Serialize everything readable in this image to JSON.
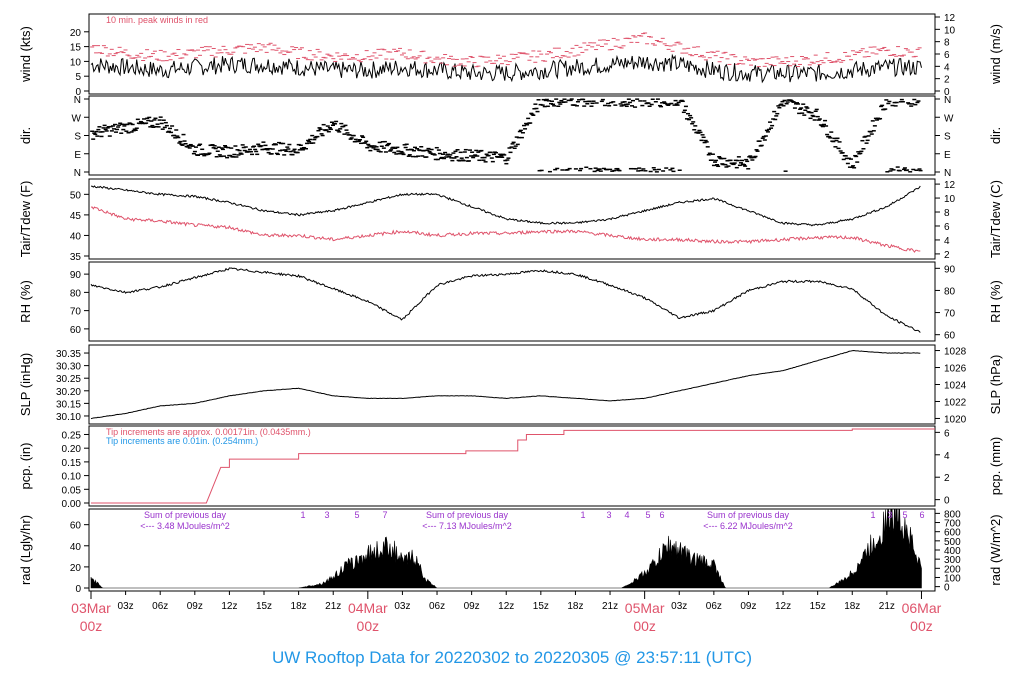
{
  "chart_data": [
    {
      "type": "line",
      "id": "wind",
      "ylabel_left": "wind (kts)",
      "ylabel_right": "wind (m/s)",
      "ylim": [
        0,
        25
      ],
      "yticks_left": [
        "0",
        "5",
        "10",
        "15",
        "20"
      ],
      "yticks_right": [
        "0",
        "2",
        "4",
        "6",
        "8",
        "10",
        "12"
      ],
      "annotation": "10 min. peak winds in red",
      "x_hours": [
        0,
        6,
        12,
        18,
        24,
        30,
        36,
        42,
        48,
        54,
        60,
        66,
        72,
        78,
        84,
        90,
        96,
        102,
        108,
        114,
        120,
        126,
        132,
        138,
        144
      ],
      "series": [
        {
          "role": "mean",
          "values": [
            9,
            8,
            7,
            8,
            9,
            9,
            8,
            7,
            7,
            8,
            7,
            6,
            6,
            7,
            8,
            9,
            10,
            9,
            7,
            6,
            6,
            6,
            7,
            8,
            8
          ]
        },
        {
          "role": "peak",
          "values": [
            14,
            12,
            11,
            12,
            13,
            14,
            12,
            11,
            11,
            12,
            10,
            9,
            10,
            11,
            13,
            15,
            17,
            14,
            11,
            9,
            9,
            10,
            11,
            13,
            12
          ]
        }
      ]
    },
    {
      "type": "scatter",
      "id": "dir",
      "ylabel_left": "dir.",
      "ylabel_right": "dir.",
      "ylim": [
        0,
        360
      ],
      "yticks_left": [
        "N",
        "E",
        "S",
        "W",
        "N"
      ],
      "yticks_right": [
        "N",
        "E",
        "S",
        "W",
        "N"
      ],
      "x_hours": [
        0,
        6,
        12,
        18,
        24,
        30,
        36,
        42,
        48,
        54,
        60,
        66,
        72,
        78,
        84,
        90,
        96,
        102,
        108,
        114,
        120,
        126,
        132,
        138,
        144
      ],
      "values": [
        190,
        220,
        250,
        110,
        100,
        120,
        110,
        240,
        130,
        110,
        90,
        80,
        70,
        350,
        355,
        350,
        350,
        355,
        60,
        40,
        350,
        280,
        30,
        355,
        355
      ]
    },
    {
      "type": "line",
      "id": "temp",
      "ylabel_left": "Tair/Tdew (F)",
      "ylabel_right": "Tair/Tdew (C)",
      "ylim": [
        35,
        53
      ],
      "yticks_left": [
        "35",
        "40",
        "45",
        "50"
      ],
      "yticks_right": [
        "2",
        "4",
        "6",
        "8",
        "10",
        "12"
      ],
      "x_hours": [
        0,
        6,
        12,
        18,
        24,
        30,
        36,
        42,
        48,
        54,
        60,
        66,
        72,
        78,
        84,
        90,
        96,
        102,
        108,
        114,
        120,
        126,
        132,
        138,
        144
      ],
      "series": [
        {
          "name": "Tair",
          "values": [
            52,
            51,
            50,
            49.5,
            48,
            46,
            45,
            46,
            48,
            50,
            50,
            47,
            44,
            43,
            43,
            44,
            46,
            48,
            49,
            46,
            43,
            42.5,
            44,
            47,
            52
          ]
        },
        {
          "name": "Tdew",
          "values": [
            47,
            44,
            43.5,
            42.5,
            42,
            40,
            40,
            39,
            40,
            41,
            40,
            40.5,
            40.5,
            41,
            41,
            40,
            39,
            39,
            38.5,
            38.5,
            39,
            39.5,
            39.5,
            37.5,
            36
          ]
        }
      ]
    },
    {
      "type": "line",
      "id": "rh",
      "ylabel_left": "RH (%)",
      "ylabel_right": "RH (%)",
      "ylim": [
        55,
        95
      ],
      "yticks_left": [
        "60",
        "70",
        "80",
        "90"
      ],
      "yticks_right": [
        "60",
        "70",
        "80",
        "90"
      ],
      "x_hours": [
        0,
        6,
        12,
        18,
        24,
        30,
        36,
        42,
        48,
        54,
        60,
        66,
        72,
        78,
        84,
        90,
        96,
        102,
        108,
        114,
        120,
        126,
        132,
        138,
        144
      ],
      "values": [
        84,
        80,
        83,
        88,
        93,
        91,
        89,
        82,
        75,
        65,
        84,
        89,
        90,
        92,
        90,
        84,
        77,
        66,
        70,
        81,
        86,
        86,
        82,
        67,
        58
      ]
    },
    {
      "type": "line",
      "id": "slp",
      "ylabel_left": "SLP (inHg)",
      "ylabel_right": "SLP (hPa)",
      "ylim": [
        30.08,
        30.37
      ],
      "yticks_left": [
        "30.10",
        "30.15",
        "30.20",
        "30.25",
        "30.30",
        "30.35"
      ],
      "yticks_right": [
        "1020",
        "1022",
        "1024",
        "1026",
        "1028"
      ],
      "x_hours": [
        0,
        6,
        12,
        18,
        24,
        30,
        36,
        42,
        48,
        54,
        60,
        66,
        72,
        78,
        84,
        90,
        96,
        102,
        108,
        114,
        120,
        126,
        132,
        138,
        144
      ],
      "values": [
        30.09,
        30.11,
        30.14,
        30.15,
        30.18,
        30.2,
        30.21,
        30.18,
        30.17,
        30.17,
        30.18,
        30.18,
        30.17,
        30.18,
        30.17,
        30.16,
        30.17,
        30.2,
        30.23,
        30.26,
        30.28,
        30.32,
        30.36,
        30.35,
        30.35
      ]
    },
    {
      "type": "line",
      "id": "pcp",
      "ylabel_left": "pcp. (in)",
      "ylabel_right": "pcp. (mm)",
      "ylim": [
        0,
        0.27
      ],
      "yticks_left": [
        "0.00",
        "0.05",
        "0.10",
        "0.15",
        "0.20",
        "0.25"
      ],
      "yticks_right": [
        "0",
        "2",
        "4",
        "6"
      ],
      "annotations": [
        "Tip increments are approx. 0.00171in. (0.0435mm.)",
        "Tip increments are 0.01in. (0.254mm.)"
      ],
      "x_hours": [
        0,
        20,
        22.5,
        24,
        36,
        65,
        74,
        75.5,
        82,
        132,
        144
      ],
      "values": [
        0,
        0,
        0.13,
        0.16,
        0.18,
        0.19,
        0.23,
        0.25,
        0.265,
        0.27,
        0.27
      ]
    },
    {
      "type": "area",
      "id": "rad",
      "ylabel_left": "rad (Lgly/hr)",
      "ylabel_right": "rad (W/m^2)",
      "ylim": [
        0,
        72
      ],
      "yticks_left": [
        "0",
        "20",
        "40",
        "60"
      ],
      "yticks_right": [
        "0",
        "100",
        "200",
        "300",
        "400",
        "500",
        "600",
        "700",
        "800"
      ],
      "x_hours": [
        0,
        1,
        2,
        16,
        18,
        20,
        22,
        23,
        24,
        26,
        28,
        30,
        32,
        34,
        36,
        40,
        42,
        44,
        46,
        48,
        50,
        52,
        54,
        56,
        58,
        60,
        64,
        66,
        68,
        70,
        72,
        74,
        76,
        78,
        80,
        82,
        84,
        86,
        88,
        90,
        92,
        94,
        96,
        98,
        100,
        102,
        104,
        106,
        108,
        110,
        112,
        114,
        116,
        118,
        120,
        122,
        124,
        126,
        128,
        130,
        132,
        134,
        136,
        138,
        140,
        142,
        143,
        144
      ],
      "values": [
        8,
        5,
        0,
        0,
        0,
        0,
        0,
        0,
        0,
        0,
        0,
        0,
        0,
        0,
        0,
        4,
        10,
        20,
        25,
        32,
        36,
        40,
        24,
        30,
        8,
        0,
        0,
        0,
        0,
        0,
        0,
        0,
        0,
        0,
        0,
        0,
        0,
        0,
        0,
        0,
        0,
        6,
        14,
        25,
        40,
        36,
        28,
        25,
        22,
        0,
        0,
        0,
        0,
        0,
        0,
        0,
        0,
        0,
        0,
        6,
        14,
        30,
        45,
        65,
        72,
        50,
        30,
        20
      ],
      "daily_sums": [
        {
          "title": "Sum of previous day",
          "text": "<--- 3.48 MJoules/m^2"
        },
        {
          "title": "Sum of previous day",
          "text": "<--- 7.13 MJoules/m^2"
        },
        {
          "title": "Sum of previous day",
          "text": "<--- 6.22 MJoules/m^2"
        }
      ],
      "uv_labels_day1": [
        "1",
        "3",
        "5",
        "7"
      ],
      "uv_labels_day2": [
        "1",
        "3",
        "4",
        "5",
        "6"
      ],
      "uv_labels_day3": [
        "1",
        "3",
        "5",
        "6"
      ]
    }
  ],
  "x_axis": {
    "minor_ticks": [
      "03z",
      "06z",
      "09z",
      "12z",
      "15z",
      "18z",
      "21z",
      "03z",
      "06z",
      "09z",
      "12z",
      "15z",
      "18z",
      "21z",
      "03z",
      "06z",
      "09z",
      "12z",
      "15z",
      "18z",
      "21z"
    ],
    "minor_hours": [
      3,
      6,
      9,
      12,
      15,
      18,
      21,
      27,
      30,
      33,
      36,
      39,
      42,
      45,
      51,
      54,
      57,
      60,
      63,
      66,
      69
    ],
    "major_labels": [
      {
        "date": "03Mar",
        "time": "00z"
      },
      {
        "date": "04Mar",
        "time": "00z"
      },
      {
        "date": "05Mar",
        "time": "00z"
      },
      {
        "date": "06Mar",
        "time": "00z"
      }
    ]
  },
  "footer": "UW Rooftop Data for 20220302  to  20220305 @ 23:57:11  (UTC)",
  "colors": {
    "black": "#000000",
    "red": "#df536b",
    "blue": "#2297e6",
    "purple": "#9932cc"
  }
}
